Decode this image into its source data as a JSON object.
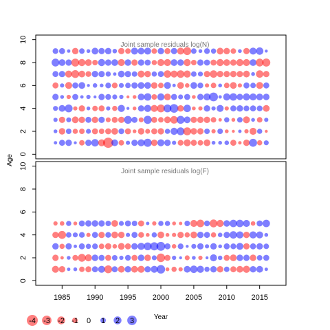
{
  "chart_data": [
    {
      "type": "scatter",
      "title": "Joint sample residuals log(N)",
      "xlabel": "Year",
      "ylabel": "Age",
      "xlim": [
        1981,
        2019
      ],
      "ylim": [
        -0.4,
        10.4
      ],
      "x_ticks": [
        "1985",
        "1990",
        "1995",
        "2000",
        "2005",
        "2010",
        "2015"
      ],
      "y_ticks": [
        "0",
        "2",
        "4",
        "6",
        "8",
        "10"
      ],
      "years": [
        1984,
        1985,
        1986,
        1987,
        1988,
        1989,
        1990,
        1991,
        1992,
        1993,
        1994,
        1995,
        1996,
        1997,
        1998,
        1999,
        2000,
        2001,
        2002,
        2003,
        2004,
        2005,
        2006,
        2007,
        2008,
        2009,
        2010,
        2011,
        2012,
        2013,
        2014,
        2015,
        2016
      ],
      "ages": [
        1,
        2,
        3,
        4,
        5,
        6,
        7,
        8,
        9
      ],
      "residuals": [
        [
          0.4,
          1.2,
          1.4,
          0.3,
          -1.0,
          1.3,
          1.8,
          -1.6,
          -3.4,
          1.5,
          -1.0,
          0.6,
          1.3,
          1.6,
          2.2,
          -1.4,
          1.6,
          1.4,
          0.6,
          -1.1,
          -1.6,
          -1.2,
          -1.0,
          -1.5,
          0.5,
          0.5,
          0.7,
          -1.2,
          -0.4,
          -1.4,
          2.1,
          -0.9,
          0.8
        ],
        [
          0.5,
          -1.4,
          1.0,
          -0.9,
          -1.0,
          0.8,
          -1.2,
          -1.0,
          -1.2,
          -1.5,
          1.1,
          -1.2,
          -0.5,
          -1.4,
          -0.8,
          -1.2,
          -1.3,
          0.9,
          1.7,
          2.0,
          -2.1,
          -1.4,
          -1.3,
          1.0,
          -0.6,
          1.0,
          -0.5,
          -0.3,
          0.4,
          -0.6,
          -1.6,
          0.9,
          -0.3
        ],
        [
          0.6,
          -1.3,
          0.8,
          -1.5,
          -1.4,
          1.2,
          -1.4,
          1.3,
          -0.8,
          -1.2,
          -1.3,
          2.0,
          1.2,
          -0.8,
          2.2,
          -1.2,
          -1.0,
          -1.5,
          -1.9,
          2.1,
          1.5,
          -1.3,
          -1.4,
          -1.4,
          -1.0,
          -0.4,
          0.9,
          -0.5,
          1.0,
          -1.6,
          0.5,
          -1.0,
          0.6
        ],
        [
          0.8,
          1.5,
          2.0,
          -0.6,
          -1.3,
          0.5,
          -1.0,
          -1.2,
          0.6,
          -0.9,
          1.7,
          0.3,
          -0.5,
          1.3,
          1.7,
          -1.6,
          -2.0,
          2.0,
          2.5,
          -1.4,
          1.8,
          -0.5,
          -0.6,
          1.4,
          0.6,
          1.6,
          -0.6,
          1.2,
          1.4,
          1.1,
          1.2,
          1.1,
          -1.5
        ],
        [
          1.3,
          0.5,
          -0.6,
          1.2,
          0.4,
          0.6,
          0.3,
          1.3,
          1.1,
          0.8,
          0.6,
          -0.3,
          -0.5,
          1.5,
          1.8,
          -1.0,
          1.7,
          -1.5,
          1.2,
          0.8,
          1.2,
          -0.5,
          1.3,
          1.6,
          2.6,
          0.4,
          1.7,
          1.8,
          1.3,
          1.7,
          1.6,
          1.5,
          1.4
        ],
        [
          -1.2,
          0.6,
          -1.6,
          1.2,
          1.5,
          0.3,
          0.7,
          0.5,
          1.1,
          -1.1,
          0.8,
          1.0,
          1.3,
          1.5,
          1.5,
          -1.4,
          -1.0,
          1.6,
          0.4,
          -1.5,
          -0.7,
          1.5,
          1.1,
          -0.6,
          -1.0,
          0.5,
          -1.0,
          -1.5,
          -0.6,
          1.2,
          1.0,
          -1.6,
          1.2
        ],
        [
          1.2,
          1.3,
          -1.6,
          -2.0,
          -1.5,
          -1.1,
          1.4,
          1.3,
          0.9,
          0.4,
          1.5,
          1.3,
          1.0,
          -1.6,
          -1.4,
          0.9,
          1.2,
          -1.8,
          -1.6,
          -1.9,
          -1.7,
          1.0,
          0.8,
          -1.3,
          -1.8,
          -1.4,
          -1.3,
          -1.4,
          -1.3,
          -1.5,
          0.5,
          -1.8,
          -1.3
        ],
        [
          2.0,
          1.5,
          1.3,
          -2.1,
          -1.7,
          -1.5,
          -1.0,
          1.7,
          1.3,
          1.5,
          -1.6,
          1.4,
          -1.3,
          1.3,
          1.2,
          -0.9,
          -1.6,
          -1.6,
          1.5,
          1.4,
          -1.7,
          -1.0,
          1.3,
          1.2,
          -1.2,
          -1.7,
          -1.5,
          -1.3,
          -1.7,
          -1.6,
          1.5,
          -2.0,
          -2.2
        ],
        [
          1.1,
          1.2,
          0.4,
          -1.4,
          1.0,
          0.5,
          1.5,
          1.3,
          1.4,
          0.7,
          -1.3,
          -1.0,
          1.6,
          1.5,
          1.6,
          -1.0,
          1.4,
          -1.2,
          1.3,
          -1.6,
          -2.1,
          1.0,
          0.5,
          1.1,
          0.9,
          -1.5,
          -1.4,
          -1.0,
          0.5,
          -1.3,
          1.6,
          1.8,
          0.3
        ]
      ]
    },
    {
      "type": "scatter",
      "title": "Joint sample residuals log(F)",
      "xlabel": "Year",
      "ylabel": "Age",
      "xlim": [
        1981,
        2019
      ],
      "ylim": [
        -0.4,
        10.4
      ],
      "x_ticks": [
        "1985",
        "1990",
        "1995",
        "2000",
        "2005",
        "2010",
        "2015"
      ],
      "y_ticks": [
        "0",
        "2",
        "4",
        "6",
        "8",
        "10"
      ],
      "years": [
        1984,
        1985,
        1986,
        1987,
        1988,
        1989,
        1990,
        1991,
        1992,
        1993,
        1994,
        1995,
        1996,
        1997,
        1998,
        1999,
        2000,
        2001,
        2002,
        2003,
        2004,
        2005,
        2006,
        2007,
        2008,
        2009,
        2010,
        2011,
        2012,
        2013,
        2014,
        2015,
        2016
      ],
      "ages": [
        1,
        2,
        3,
        4,
        5
      ],
      "residuals": [
        [
          -1.6,
          -1.4,
          0.4,
          0.5,
          -1.0,
          -1.2,
          1.2,
          1.6,
          -2.0,
          1.2,
          -1.5,
          1.4,
          -1.5,
          -1.6,
          1.3,
          1.6,
          2.4,
          -0.5,
          -0.9,
          -0.6,
          1.5,
          1.8,
          1.7,
          0.9,
          1.4,
          -1.4,
          1.0,
          -1.2,
          -1.5,
          -1.7,
          1.4,
          1.5,
          0.4
        ],
        [
          -1.3,
          -0.4,
          0.5,
          -1.1,
          -2.0,
          -1.6,
          1.4,
          1.2,
          -1.2,
          1.0,
          0.6,
          1.1,
          -1.2,
          1.4,
          -1.4,
          0.8,
          -2.4,
          -1.2,
          0.6,
          0.3,
          -0.8,
          0.5,
          -0.6,
          0.3,
          1.6,
          0.7,
          -1.2,
          -1.5,
          1.4,
          1.3,
          -1.4,
          1.0,
          1.2
        ],
        [
          1.4,
          -0.9,
          1.3,
          0.4,
          1.2,
          0.9,
          1.1,
          -1.0,
          -1.3,
          -0.7,
          -1.5,
          -1.2,
          1.4,
          1.7,
          2.0,
          2.2,
          2.6,
          1.2,
          -0.7,
          1.1,
          0.3,
          0.8,
          1.3,
          0.6,
          1.4,
          0.5,
          1.2,
          1.1,
          1.6,
          -1.3,
          1.2,
          1.4,
          1.0
        ],
        [
          -1.3,
          -2.1,
          1.0,
          0.8,
          1.1,
          -0.6,
          1.2,
          -1.3,
          1.1,
          -1.5,
          -1.4,
          0.6,
          1.2,
          -1.1,
          -0.5,
          0.9,
          -1.5,
          -0.5,
          -0.6,
          -1.3,
          -0.9,
          -1.5,
          1.4,
          1.2,
          -0.9,
          0.7,
          1.3,
          1.8,
          1.7,
          -1.4,
          1.7,
          1.6,
          0.5
        ],
        [
          -0.6,
          -0.7,
          0.9,
          -0.5,
          1.2,
          1.3,
          1.4,
          1.3,
          1.0,
          -1.5,
          0.8,
          1.2,
          1.0,
          -1.2,
          0.4,
          -0.6,
          0.9,
          0.9,
          -0.5,
          -0.4,
          1.0,
          -1.6,
          -1.9,
          1.1,
          -2.0,
          -1.7,
          1.4,
          1.8,
          1.8,
          1.6,
          -0.7,
          1.2,
          1.8
        ]
      ]
    }
  ],
  "size_legend": {
    "values": [
      -4,
      -3,
      -2,
      -1,
      0,
      1,
      2,
      3
    ],
    "labels": [
      "-4",
      "-3",
      "-2",
      "-1",
      "0",
      "1",
      "2",
      "3"
    ]
  },
  "colors": {
    "negative": "#ff0000",
    "positive": "#0000ff",
    "panel_title": "#777777"
  }
}
